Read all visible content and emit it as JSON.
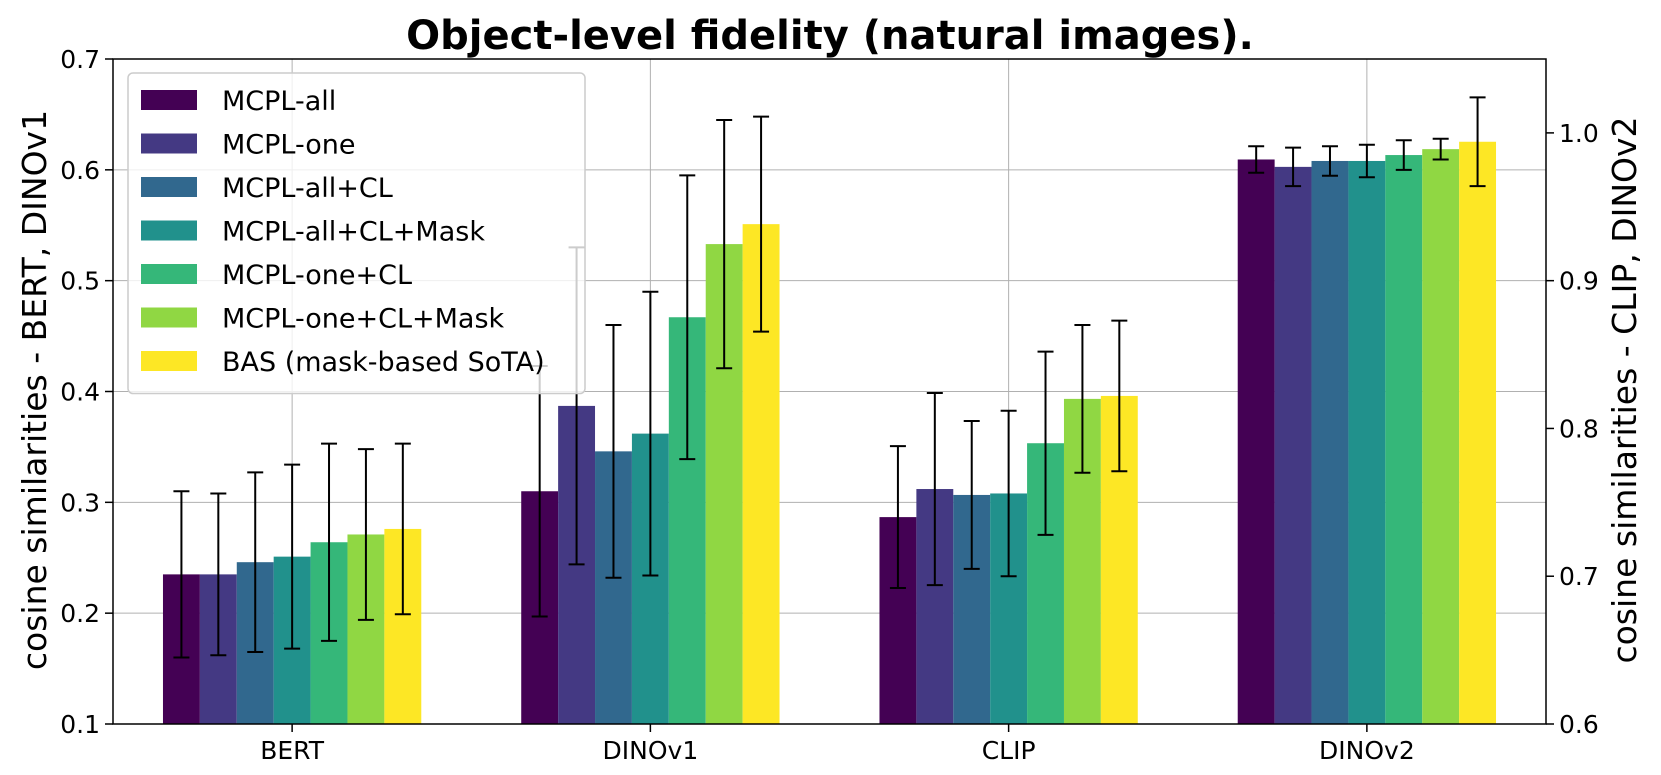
{
  "chart_data": {
    "type": "bar",
    "title": "Object-level fidelity (natural images).",
    "categories": [
      "BERT",
      "DINOv1",
      "CLIP",
      "DINOv2"
    ],
    "left_axis": {
      "label": "cosine similarities - BERT, DINOv1",
      "ylim": [
        0.1,
        0.7
      ],
      "ticks": [
        "0.1",
        "0.2",
        "0.3",
        "0.4",
        "0.5",
        "0.6",
        "0.7"
      ],
      "applies_to": [
        "BERT",
        "DINOv1"
      ]
    },
    "right_axis": {
      "label": "cosine similarities - CLIP, DINOv2",
      "ylim": [
        0.6,
        1.05
      ],
      "ticks": [
        "0.6",
        "0.7",
        "0.8",
        "0.9",
        "1.0"
      ],
      "applies_to": [
        "CLIP",
        "DINOv2"
      ]
    },
    "grid": true,
    "legend_position": "upper-left",
    "series": [
      {
        "name": "MCPL-all",
        "color": "#440154",
        "values": [
          0.235,
          0.31,
          0.74,
          0.982
        ],
        "errors": [
          0.075,
          0.113,
          0.048,
          0.009
        ]
      },
      {
        "name": "MCPL-one",
        "color": "#443983",
        "values": [
          0.235,
          0.387,
          0.759,
          0.977
        ],
        "errors": [
          0.073,
          0.143,
          0.065,
          0.013
        ]
      },
      {
        "name": "MCPL-all+CL",
        "color": "#31688E",
        "values": [
          0.246,
          0.346,
          0.755,
          0.981
        ],
        "errors": [
          0.081,
          0.114,
          0.05,
          0.01
        ]
      },
      {
        "name": "MCPL-all+CL+Mask",
        "color": "#21918C",
        "values": [
          0.251,
          0.362,
          0.756,
          0.981
        ],
        "errors": [
          0.083,
          0.128,
          0.056,
          0.011
        ]
      },
      {
        "name": "MCPL-one+CL",
        "color": "#35B779",
        "values": [
          0.264,
          0.467,
          0.79,
          0.985
        ],
        "errors": [
          0.089,
          0.128,
          0.062,
          0.01
        ]
      },
      {
        "name": "MCPL-one+CL+Mask",
        "color": "#90D743",
        "values": [
          0.271,
          0.533,
          0.82,
          0.989
        ],
        "errors": [
          0.077,
          0.112,
          0.05,
          0.007
        ]
      },
      {
        "name": "BAS (mask-based SoTA)",
        "color": "#FDE725",
        "values": [
          0.276,
          0.551,
          0.822,
          0.994
        ],
        "errors": [
          0.077,
          0.097,
          0.051,
          0.03
        ]
      }
    ]
  }
}
